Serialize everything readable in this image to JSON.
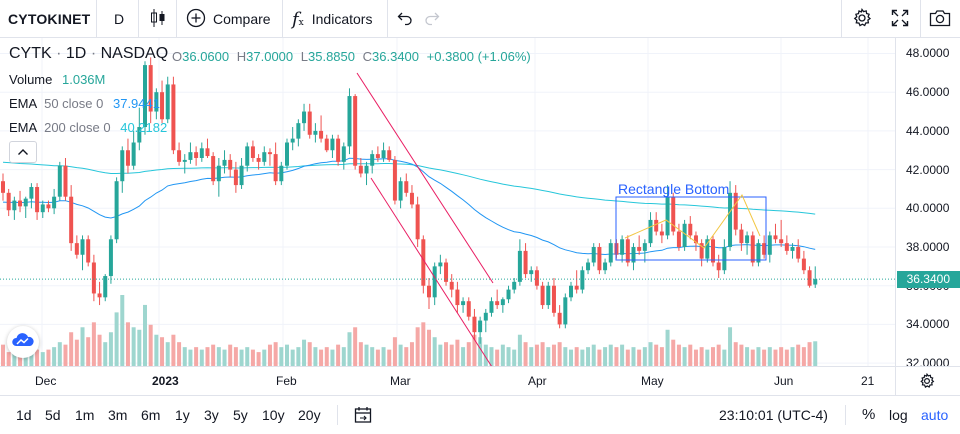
{
  "toolbar": {
    "symbol": "CYTOKINET",
    "interval": "D",
    "compare_label": "Compare",
    "indicators_label": "Indicators"
  },
  "legend": {
    "symbol": "CYTK",
    "interval": "1D",
    "exchange": "NASDAQ",
    "open_label": "O",
    "open": "36.0600",
    "high_label": "H",
    "high": "37.0000",
    "low_label": "L",
    "low": "35.8850",
    "close_label": "C",
    "close": "36.3400",
    "change": "+0.3800 (+1.06%)",
    "volume_label": "Volume",
    "volume": "1.036M",
    "ema50_label": "EMA",
    "ema50_params": "50 close 0",
    "ema50_value": "37.9441",
    "ema200_label": "EMA",
    "ema200_params": "200 close 0",
    "ema200_value": "40.2182"
  },
  "annotation": {
    "rectangle_label": "Rectangle Bottom"
  },
  "price_axis": {
    "ticks": [
      "48.0000",
      "46.0000",
      "44.0000",
      "42.0000",
      "40.0000",
      "38.0000",
      "36.0000",
      "34.0000",
      "32.0000"
    ],
    "last_price": "36.3400"
  },
  "time_axis": {
    "labels": [
      "Dec",
      "2023",
      "Feb",
      "Mar",
      "Apr",
      "May",
      "Jun",
      "21"
    ]
  },
  "bottom": {
    "ranges": [
      "1d",
      "5d",
      "1m",
      "3m",
      "6m",
      "1y",
      "3y",
      "5y",
      "10y",
      "20y"
    ],
    "clock": "23:10:01 (UTC-4)",
    "percent": "%",
    "log": "log",
    "auto": "auto"
  },
  "colors": {
    "up": "#26a69a",
    "down": "#ef5350",
    "vol_up": "#9ed6cf",
    "vol_down": "#f5a8a6",
    "ema50": "#2196f3",
    "ema200": "#26c6da",
    "trendline": "#e91e63",
    "rectangle": "#2962ff",
    "accent": "#2962ff"
  },
  "chart_data": {
    "type": "candlestick",
    "symbol": "CYTK",
    "ylim": [
      31.8,
      48.8
    ],
    "candles": [
      [
        41.4,
        41.8,
        40.4,
        40.8
      ],
      [
        40.8,
        41.0,
        39.6,
        39.9
      ],
      [
        39.9,
        40.6,
        39.4,
        40.4
      ],
      [
        40.4,
        40.9,
        39.8,
        40.1
      ],
      [
        40.1,
        40.6,
        39.5,
        40.5
      ],
      [
        40.5,
        41.3,
        40.0,
        41.1
      ],
      [
        41.1,
        41.3,
        39.4,
        39.8
      ],
      [
        39.8,
        40.4,
        39.5,
        40.2
      ],
      [
        40.2,
        40.4,
        39.8,
        40.0
      ],
      [
        40.0,
        41.0,
        39.7,
        40.6
      ],
      [
        40.6,
        42.4,
        40.4,
        42.2
      ],
      [
        42.2,
        42.6,
        40.4,
        40.6
      ],
      [
        40.6,
        41.2,
        37.8,
        38.2
      ],
      [
        38.2,
        38.6,
        37.4,
        37.6
      ],
      [
        37.6,
        38.6,
        36.8,
        38.4
      ],
      [
        38.4,
        38.6,
        37.0,
        37.2
      ],
      [
        37.2,
        37.6,
        35.2,
        35.6
      ],
      [
        35.6,
        36.2,
        35.0,
        35.4
      ],
      [
        35.4,
        36.6,
        35.2,
        36.5
      ],
      [
        36.5,
        38.6,
        36.1,
        38.4
      ],
      [
        38.4,
        41.6,
        38.2,
        41.4
      ],
      [
        41.4,
        43.2,
        40.8,
        43.0
      ],
      [
        43.0,
        43.6,
        41.8,
        42.2
      ],
      [
        42.2,
        44.0,
        42.0,
        43.4
      ],
      [
        43.4,
        45.2,
        43.0,
        44.2
      ],
      [
        44.2,
        47.6,
        43.8,
        47.4
      ],
      [
        47.4,
        47.8,
        44.4,
        45.0
      ],
      [
        45.0,
        46.2,
        44.6,
        46.0
      ],
      [
        46.0,
        46.6,
        44.4,
        44.6
      ],
      [
        44.6,
        46.8,
        44.4,
        46.4
      ],
      [
        46.4,
        46.8,
        42.8,
        43.0
      ],
      [
        43.0,
        43.4,
        42.2,
        42.4
      ],
      [
        42.4,
        42.8,
        41.8,
        42.5
      ],
      [
        42.5,
        43.4,
        42.3,
        42.9
      ],
      [
        42.9,
        43.2,
        42.2,
        42.6
      ],
      [
        42.6,
        43.4,
        42.4,
        43.1
      ],
      [
        43.1,
        43.6,
        42.6,
        42.7
      ],
      [
        42.7,
        42.9,
        41.2,
        41.4
      ],
      [
        41.4,
        42.6,
        40.6,
        42.2
      ],
      [
        42.2,
        43.0,
        41.8,
        42.5
      ],
      [
        42.5,
        42.8,
        41.6,
        42.0
      ],
      [
        42.0,
        42.4,
        40.8,
        41.2
      ],
      [
        41.2,
        42.6,
        41.0,
        42.2
      ],
      [
        42.2,
        43.4,
        41.9,
        43.2
      ],
      [
        43.2,
        43.5,
        42.4,
        42.6
      ],
      [
        42.6,
        42.8,
        42.0,
        42.4
      ],
      [
        42.4,
        43.2,
        42.2,
        42.9
      ],
      [
        42.9,
        43.1,
        42.2,
        42.8
      ],
      [
        42.8,
        43.4,
        41.2,
        41.4
      ],
      [
        41.4,
        42.4,
        41.2,
        42.2
      ],
      [
        42.2,
        43.6,
        42.0,
        43.4
      ],
      [
        43.4,
        44.2,
        43.0,
        43.6
      ],
      [
        43.6,
        44.6,
        43.2,
        44.4
      ],
      [
        44.4,
        45.4,
        44.0,
        45.0
      ],
      [
        45.0,
        45.4,
        43.6,
        43.8
      ],
      [
        43.8,
        44.4,
        43.4,
        44.0
      ],
      [
        44.0,
        44.8,
        43.4,
        43.6
      ],
      [
        43.6,
        43.8,
        42.9,
        43.0
      ],
      [
        43.0,
        43.8,
        42.6,
        43.6
      ],
      [
        43.6,
        43.8,
        42.2,
        42.4
      ],
      [
        42.4,
        43.4,
        42.0,
        43.2
      ],
      [
        43.2,
        46.2,
        42.8,
        45.8
      ],
      [
        45.8,
        45.9,
        42.0,
        42.2
      ],
      [
        42.2,
        42.6,
        41.6,
        41.8
      ],
      [
        41.8,
        42.4,
        41.2,
        42.2
      ],
      [
        42.2,
        43.0,
        41.8,
        42.8
      ],
      [
        42.8,
        43.2,
        42.4,
        42.6
      ],
      [
        42.6,
        43.4,
        42.4,
        43.0
      ],
      [
        43.0,
        43.2,
        42.4,
        42.5
      ],
      [
        42.5,
        42.7,
        40.2,
        40.4
      ],
      [
        40.4,
        41.6,
        40.0,
        41.4
      ],
      [
        41.4,
        41.8,
        40.6,
        40.8
      ],
      [
        40.8,
        41.2,
        40.0,
        40.2
      ],
      [
        40.2,
        40.6,
        38.0,
        38.4
      ],
      [
        38.4,
        38.6,
        35.6,
        36.0
      ],
      [
        36.0,
        36.4,
        34.8,
        35.4
      ],
      [
        35.4,
        37.2,
        35.0,
        37.0
      ],
      [
        37.0,
        37.6,
        36.6,
        37.2
      ],
      [
        37.2,
        37.4,
        36.0,
        36.2
      ],
      [
        36.2,
        36.6,
        35.4,
        35.8
      ],
      [
        35.8,
        36.2,
        34.6,
        35.0
      ],
      [
        35.0,
        35.4,
        34.6,
        35.2
      ],
      [
        35.2,
        35.4,
        34.2,
        34.4
      ],
      [
        34.4,
        34.8,
        33.2,
        33.6
      ],
      [
        33.6,
        34.4,
        33.0,
        34.2
      ],
      [
        34.2,
        34.8,
        33.6,
        34.6
      ],
      [
        34.6,
        35.4,
        34.4,
        35.2
      ],
      [
        35.2,
        35.8,
        34.8,
        35.0
      ],
      [
        35.0,
        35.4,
        34.6,
        35.3
      ],
      [
        35.3,
        36.0,
        35.1,
        35.8
      ],
      [
        35.8,
        36.4,
        35.6,
        36.2
      ],
      [
        36.2,
        38.4,
        36.0,
        37.8
      ],
      [
        37.8,
        38.2,
        36.4,
        36.6
      ],
      [
        36.6,
        37.0,
        36.2,
        36.8
      ],
      [
        36.8,
        37.0,
        35.8,
        36.0
      ],
      [
        36.0,
        36.2,
        34.8,
        35.0
      ],
      [
        35.0,
        36.2,
        34.8,
        36.0
      ],
      [
        36.0,
        36.4,
        34.4,
        34.6
      ],
      [
        34.6,
        35.0,
        33.8,
        34.0
      ],
      [
        34.0,
        35.6,
        33.8,
        35.4
      ],
      [
        35.4,
        36.2,
        35.2,
        36.0
      ],
      [
        36.0,
        36.8,
        35.6,
        35.8
      ],
      [
        35.8,
        37.0,
        35.6,
        36.8
      ],
      [
        36.8,
        37.4,
        36.6,
        37.2
      ],
      [
        37.2,
        38.2,
        37.0,
        38.0
      ],
      [
        38.0,
        38.2,
        36.6,
        36.8
      ],
      [
        36.8,
        37.4,
        36.6,
        37.2
      ],
      [
        37.2,
        38.4,
        37.0,
        38.2
      ],
      [
        38.2,
        38.4,
        37.4,
        37.6
      ],
      [
        37.6,
        38.6,
        37.2,
        38.4
      ],
      [
        38.4,
        38.6,
        37.0,
        37.2
      ],
      [
        37.2,
        38.2,
        36.8,
        38.0
      ],
      [
        38.0,
        38.6,
        37.6,
        37.8
      ],
      [
        37.8,
        38.4,
        37.2,
        38.2
      ],
      [
        38.2,
        39.8,
        38.0,
        39.4
      ],
      [
        39.4,
        39.8,
        38.6,
        38.8
      ],
      [
        38.8,
        39.2,
        38.2,
        38.6
      ],
      [
        38.6,
        41.2,
        38.4,
        40.6
      ],
      [
        40.6,
        40.8,
        38.6,
        38.8
      ],
      [
        38.8,
        39.2,
        37.8,
        38.0
      ],
      [
        38.0,
        39.4,
        37.8,
        39.2
      ],
      [
        39.2,
        39.6,
        38.4,
        38.6
      ],
      [
        38.6,
        38.8,
        37.8,
        38.2
      ],
      [
        38.2,
        38.4,
        37.0,
        37.4
      ],
      [
        37.4,
        38.6,
        37.2,
        38.4
      ],
      [
        38.4,
        38.6,
        37.0,
        37.2
      ],
      [
        37.2,
        37.6,
        36.4,
        36.8
      ],
      [
        36.8,
        38.4,
        36.6,
        38.0
      ],
      [
        38.0,
        41.4,
        37.8,
        40.8
      ],
      [
        40.8,
        41.2,
        38.6,
        38.9
      ],
      [
        38.9,
        39.2,
        37.8,
        38.2
      ],
      [
        38.2,
        38.8,
        37.6,
        38.6
      ],
      [
        38.6,
        38.8,
        37.0,
        37.2
      ],
      [
        37.2,
        38.4,
        37.0,
        38.2
      ],
      [
        38.2,
        38.6,
        37.4,
        37.6
      ],
      [
        37.6,
        38.8,
        37.2,
        38.6
      ],
      [
        38.6,
        39.2,
        38.2,
        38.4
      ],
      [
        38.4,
        39.4,
        38.0,
        38.2
      ],
      [
        38.2,
        38.6,
        37.6,
        37.8
      ],
      [
        37.8,
        38.2,
        37.4,
        38.0
      ],
      [
        38.0,
        38.4,
        37.2,
        37.4
      ],
      [
        37.4,
        37.8,
        36.6,
        36.8
      ],
      [
        36.8,
        37.0,
        35.9,
        36.0
      ],
      [
        36.06,
        37.0,
        35.885,
        36.34
      ]
    ],
    "volume": [
      0.9,
      0.6,
      0.8,
      0.7,
      0.6,
      0.8,
      0.7,
      0.6,
      0.7,
      0.8,
      1.0,
      0.9,
      1.4,
      1.1,
      1.6,
      1.2,
      1.8,
      1.3,
      1.0,
      1.4,
      2.2,
      2.9,
      1.8,
      1.6,
      1.5,
      2.5,
      1.7,
      1.3,
      1.2,
      1.0,
      1.3,
      1.0,
      0.8,
      0.7,
      0.8,
      0.7,
      0.8,
      0.9,
      0.8,
      0.7,
      0.9,
      0.8,
      0.7,
      0.8,
      0.7,
      0.6,
      0.7,
      0.9,
      1.0,
      0.8,
      0.9,
      0.7,
      0.8,
      1.1,
      1.0,
      0.8,
      0.7,
      0.8,
      0.7,
      0.9,
      0.8,
      1.4,
      1.6,
      1.0,
      0.9,
      0.8,
      0.7,
      0.8,
      0.7,
      1.2,
      0.9,
      0.8,
      1.0,
      1.6,
      1.8,
      1.5,
      1.2,
      0.9,
      1.0,
      0.9,
      1.1,
      0.8,
      1.0,
      1.3,
      1.2,
      0.9,
      0.8,
      0.7,
      0.9,
      0.8,
      0.7,
      1.3,
      1.0,
      0.8,
      0.9,
      1.0,
      0.8,
      0.9,
      1.0,
      0.8,
      0.7,
      0.8,
      0.7,
      0.8,
      0.9,
      0.7,
      0.8,
      0.9,
      0.8,
      0.9,
      0.7,
      0.8,
      0.7,
      0.8,
      1.0,
      0.9,
      0.8,
      1.5,
      1.1,
      0.9,
      0.8,
      0.9,
      0.7,
      0.8,
      0.7,
      0.8,
      0.9,
      0.7,
      1.6,
      1.0,
      0.9,
      0.8,
      0.7,
      0.8,
      0.7,
      0.8,
      0.7,
      0.8,
      0.7,
      0.8,
      0.9,
      0.8,
      1.0,
      1.036
    ],
    "ema50_endpoints": [
      [
        0,
        37.9441
      ]
    ],
    "ema200_last": 40.2182,
    "annotations": [
      {
        "type": "rectangle",
        "label": "Rectangle Bottom"
      },
      {
        "type": "trend_channel"
      }
    ]
  }
}
